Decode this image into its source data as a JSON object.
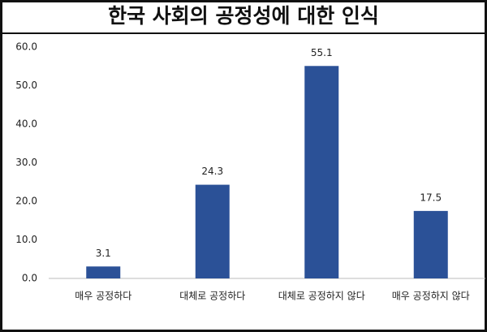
{
  "chart_data": {
    "type": "bar",
    "title": "한국 사회의 공정성에 대한 인식",
    "categories": [
      "매우 공정하다",
      "대체로 공정하다",
      "대체로 공정하지 않다",
      "매우 공정하지 않다"
    ],
    "values": [
      3.1,
      24.3,
      55.1,
      17.5
    ],
    "color": "#2b5197",
    "ylim": [
      0,
      60
    ],
    "yticks": [
      {
        "value": 0,
        "label": "0.0"
      },
      {
        "value": 10,
        "label": "10.0"
      },
      {
        "value": 20,
        "label": "20.0"
      },
      {
        "value": 30,
        "label": "30.0"
      },
      {
        "value": 40,
        "label": "40.0"
      },
      {
        "value": 50,
        "label": "50.0"
      },
      {
        "value": 60,
        "label": "60.0"
      }
    ],
    "grid": false
  }
}
